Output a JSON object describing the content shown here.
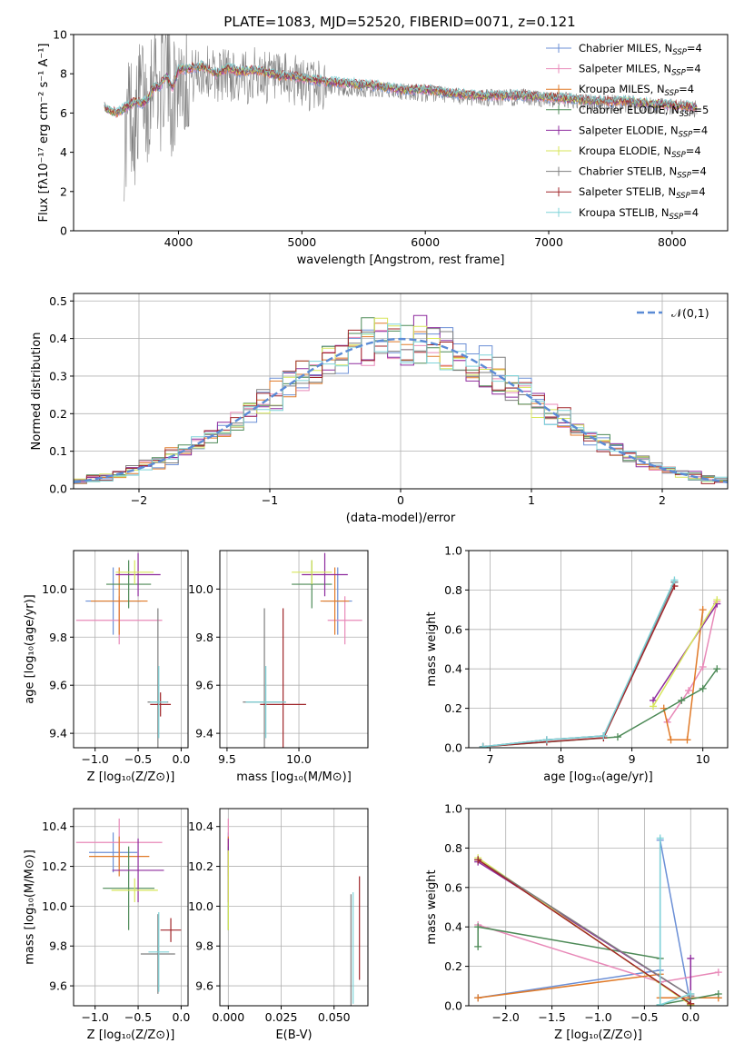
{
  "figure_title": "PLATE=1083, MJD=52520, FIBERID=0071, z=0.121",
  "model_colors": [
    "#6b8fd6",
    "#e889b8",
    "#e07a28",
    "#4d8a57",
    "#8e2b9e",
    "#d7e65a",
    "#7f7f7f",
    "#a0262a",
    "#7fd3d8"
  ],
  "chart_data": [
    {
      "id": "spectrum",
      "type": "line",
      "title": "PLATE=1083, MJD=52520, FIBERID=0071, z=0.121",
      "xlabel": "wavelength [Angstrom, rest frame]",
      "ylabel": "Flux [fλ10⁻¹⁷ erg cm⁻² s⁻¹ A⁻¹]",
      "xlim": [
        3150,
        8450
      ],
      "ylim": [
        0,
        10
      ],
      "xticks": [
        4000,
        5000,
        6000,
        7000,
        8000
      ],
      "yticks": [
        0,
        2,
        4,
        6,
        8,
        10
      ],
      "legend_position": "top-right",
      "legend": [
        "Chabrier MILES, N_SSP=4",
        "Salpeter MILES, N_SSP=4",
        "Kroupa MILES, N_SSP=4",
        "Chabrier ELODIE, N_SSP=5",
        "Salpeter ELODIE, N_SSP=4",
        "Kroupa ELODIE, N_SSP=4",
        "Chabrier STELIB, N_SSP=4",
        "Salpeter STELIB, N_SSP=4",
        "Kroupa STELIB, N_SSP=4"
      ],
      "data_series": {
        "name": "",
        "x": [
          3570,
          3600,
          3650,
          3700,
          3750,
          3800,
          3850,
          3900,
          3950,
          4000,
          4100,
          4200,
          4300,
          4400,
          4500,
          4600,
          4700,
          4800,
          4900,
          5000,
          5200,
          5400,
          5600,
          5800,
          6000,
          6200,
          6400,
          6600,
          6800,
          7000,
          7200,
          7400,
          7600,
          7800,
          8000,
          8200
        ],
        "y": [
          4.5,
          6.5,
          5.2,
          7.5,
          6.2,
          8.8,
          6.8,
          8.6,
          6.5,
          8.0,
          7.8,
          8.2,
          7.9,
          8.1,
          7.6,
          8.0,
          7.9,
          7.6,
          7.7,
          7.5,
          7.4,
          7.2,
          7.2,
          7.1,
          7.0,
          6.9,
          6.8,
          6.8,
          6.8,
          6.7,
          6.6,
          6.5,
          6.5,
          6.4,
          6.3,
          6.2
        ]
      },
      "model_x": [
        3400,
        3450,
        3500,
        3550,
        3600,
        3650,
        3700,
        3750,
        3800,
        3850,
        3900,
        3950,
        4000,
        4100,
        4200,
        4300,
        4400,
        4500,
        4600,
        4700,
        4800,
        4900,
        5000,
        5200,
        5400,
        5600,
        5800,
        6000,
        6200,
        6400,
        6600,
        6800,
        7000,
        7200,
        7400,
        7600,
        7800,
        8000,
        8200
      ],
      "model_y": [
        6.3,
        6.1,
        6.0,
        6.2,
        6.4,
        6.6,
        6.5,
        6.7,
        7.3,
        7.4,
        7.9,
        7.3,
        8.2,
        8.3,
        8.4,
        8.0,
        8.3,
        8.1,
        8.2,
        8.1,
        7.9,
        7.9,
        7.8,
        7.6,
        7.5,
        7.4,
        7.2,
        7.2,
        7.0,
        6.9,
        6.9,
        6.9,
        6.8,
        6.7,
        6.6,
        6.6,
        6.5,
        6.4,
        6.3
      ]
    },
    {
      "id": "residuals",
      "type": "line",
      "xlabel": "(data-model)/error",
      "ylabel": "Normed distribution",
      "xlim": [
        -2.5,
        2.5
      ],
      "ylim": [
        0,
        0.52
      ],
      "xticks": [
        -2,
        -1,
        0,
        1,
        2
      ],
      "yticks": [
        0.0,
        0.1,
        0.2,
        0.3,
        0.4,
        0.5
      ],
      "legend_position": "top-right",
      "legend": [
        "𝒩(0,1)"
      ],
      "reference_curve": {
        "mean": 0,
        "sigma": 1,
        "style": "dashed",
        "color": "#5b8bd5"
      },
      "bin_width": 0.1
    },
    {
      "id": "age-vs-metallicity",
      "type": "scatter",
      "xlabel": "Z [log₁₀(Z/Z⊙)]",
      "ylabel": "age  [log₁₀(age/yr)]",
      "xlim": [
        -1.25,
        0.08
      ],
      "ylim": [
        9.34,
        10.16
      ],
      "xticks": [
        -1.0,
        -0.5,
        0.0
      ],
      "yticks": [
        9.4,
        9.6,
        9.8,
        10.0
      ],
      "points": [
        {
          "x": -0.79,
          "y": 9.95,
          "xerr": 0.32,
          "yerr": 0.14
        },
        {
          "x": -0.72,
          "y": 9.87,
          "xerr": 0.5,
          "yerr": 0.1
        },
        {
          "x": -0.72,
          "y": 9.95,
          "xerr": 0.33,
          "yerr": 0.14
        },
        {
          "x": -0.61,
          "y": 10.02,
          "xerr": 0.26,
          "yerr": 0.1
        },
        {
          "x": -0.5,
          "y": 10.06,
          "xerr": 0.26,
          "yerr": 0.09
        },
        {
          "x": -0.54,
          "y": 10.07,
          "xerr": 0.22,
          "yerr": 0.05
        },
        {
          "x": -0.27,
          "y": 9.53,
          "xerr": 0.12,
          "yerr": 0.39
        },
        {
          "x": -0.24,
          "y": 9.52,
          "xerr": 0.12,
          "yerr": 0.05
        },
        {
          "x": -0.26,
          "y": 9.53,
          "xerr": 0.1,
          "yerr": 0.15
        }
      ]
    },
    {
      "id": "age-vs-mass",
      "type": "scatter",
      "xlabel": "mass [log₁₀(M/M⊙)]",
      "ylabel": "",
      "xlim": [
        9.45,
        10.48
      ],
      "ylim": [
        9.34,
        10.16
      ],
      "xticks": [
        9.5,
        10.0
      ],
      "yticks": [
        9.4,
        9.6,
        9.8,
        10.0
      ],
      "points": [
        {
          "x": 10.27,
          "y": 9.95,
          "xerr": 0.1,
          "yerr": 0.14
        },
        {
          "x": 10.32,
          "y": 9.87,
          "xerr": 0.12,
          "yerr": 0.1
        },
        {
          "x": 10.25,
          "y": 9.95,
          "xerr": 0.1,
          "yerr": 0.14
        },
        {
          "x": 10.09,
          "y": 10.02,
          "xerr": 0.14,
          "yerr": 0.1
        },
        {
          "x": 10.18,
          "y": 10.06,
          "xerr": 0.16,
          "yerr": 0.09
        },
        {
          "x": 10.09,
          "y": 10.07,
          "xerr": 0.14,
          "yerr": 0.05
        },
        {
          "x": 9.76,
          "y": 9.53,
          "xerr": 0.15,
          "yerr": 0.39
        },
        {
          "x": 9.89,
          "y": 9.52,
          "xerr": 0.16,
          "yerr": 0.4
        },
        {
          "x": 9.77,
          "y": 9.53,
          "xerr": 0.14,
          "yerr": 0.15
        }
      ]
    },
    {
      "id": "mass-weight-vs-age",
      "type": "line",
      "xlabel": "age  [log₁₀(age/yr)]",
      "ylabel": "mass weight",
      "xlim": [
        6.7,
        10.35
      ],
      "ylim": [
        0,
        1.0
      ],
      "xticks": [
        7,
        8,
        9,
        10
      ],
      "yticks": [
        0.0,
        0.2,
        0.4,
        0.6,
        0.8,
        1.0
      ],
      "series": [
        {
          "x": [
            6.9,
            7.8,
            8.6,
            9.6
          ],
          "y": [
            0.005,
            0.04,
            0.06,
            0.84
          ]
        },
        {
          "x": [
            9.5,
            9.8,
            10.0,
            10.2
          ],
          "y": [
            0.13,
            0.29,
            0.41,
            0.74
          ]
        },
        {
          "x": [
            9.45,
            9.55,
            9.78,
            10.0
          ],
          "y": [
            0.2,
            0.04,
            0.04,
            0.7
          ]
        },
        {
          "x": [
            6.9,
            8.8,
            9.7,
            10.0,
            10.2
          ],
          "y": [
            0.005,
            0.055,
            0.24,
            0.3,
            0.4
          ]
        },
        {
          "x": [
            9.3,
            10.2
          ],
          "y": [
            0.24,
            0.73
          ]
        },
        {
          "x": [
            9.3,
            10.2
          ],
          "y": [
            0.21,
            0.75
          ]
        },
        {
          "x": [
            6.9,
            7.8,
            8.6,
            9.6
          ],
          "y": [
            0.005,
            0.04,
            0.06,
            0.84
          ]
        },
        {
          "x": [
            6.9,
            7.8,
            8.6,
            9.6
          ],
          "y": [
            0.005,
            0.03,
            0.05,
            0.82
          ]
        },
        {
          "x": [
            6.9,
            7.8,
            8.6,
            9.6
          ],
          "y": [
            0.005,
            0.04,
            0.06,
            0.85
          ]
        }
      ]
    },
    {
      "id": "mass-vs-metallicity",
      "type": "scatter",
      "xlabel": "Z [log₁₀(Z/Z⊙)]",
      "ylabel": "mass [log₁₀(M/M⊙)]",
      "xlim": [
        -1.25,
        0.08
      ],
      "ylim": [
        9.5,
        10.49
      ],
      "xticks": [
        -1.0,
        -0.5,
        0.0
      ],
      "yticks": [
        9.6,
        9.8,
        10.0,
        10.2,
        10.4
      ],
      "points": [
        {
          "x": -0.79,
          "y": 10.27,
          "xerr": 0.28,
          "yerr": 0.1
        },
        {
          "x": -0.72,
          "y": 10.32,
          "xerr": 0.5,
          "yerr": 0.12
        },
        {
          "x": -0.72,
          "y": 10.25,
          "xerr": 0.35,
          "yerr": 0.1
        },
        {
          "x": -0.61,
          "y": 10.09,
          "xerr": 0.3,
          "yerr": 0.21
        },
        {
          "x": -0.5,
          "y": 10.18,
          "xerr": 0.3,
          "yerr": 0.16
        },
        {
          "x": -0.54,
          "y": 10.08,
          "xerr": 0.27,
          "yerr": 0.06
        },
        {
          "x": -0.27,
          "y": 9.76,
          "xerr": 0.2,
          "yerr": 0.2
        },
        {
          "x": -0.12,
          "y": 9.88,
          "xerr": 0.12,
          "yerr": 0.06
        },
        {
          "x": -0.26,
          "y": 9.77,
          "xerr": 0.12,
          "yerr": 0.2
        }
      ]
    },
    {
      "id": "mass-vs-extinction",
      "type": "scatter",
      "xlabel": "E(B-V)",
      "ylabel": "",
      "xlim": [
        -0.004,
        0.066
      ],
      "ylim": [
        9.5,
        10.49
      ],
      "xticks": [
        0.0,
        0.025,
        0.05
      ],
      "tick_labels": [
        "0.000",
        "0.025",
        "0.050"
      ],
      "yticks": [
        9.6,
        9.8,
        10.0,
        10.2,
        10.4
      ],
      "points": [
        {
          "x": 0.0,
          "y": 10.27,
          "yerr": 0.1
        },
        {
          "x": 0.0,
          "y": 10.32,
          "yerr": 0.12
        },
        {
          "x": 0.0,
          "y": 10.25,
          "yerr": 0.1
        },
        {
          "x": 0.0,
          "y": 10.09,
          "yerr": 0.21
        },
        {
          "x": 0.0,
          "y": 10.18,
          "yerr": 0.16
        },
        {
          "x": 0.0,
          "y": 10.08,
          "yerr": 0.2
        },
        {
          "x": 0.058,
          "y": 9.76,
          "yerr": 0.3
        },
        {
          "x": 0.062,
          "y": 9.89,
          "yerr": 0.26
        },
        {
          "x": 0.059,
          "y": 9.79,
          "yerr": 0.28
        }
      ]
    },
    {
      "id": "mass-weight-vs-metallicity",
      "type": "line",
      "xlabel": "Z [log₁₀(Z/Z⊙)]",
      "ylabel": "mass weight",
      "xlim": [
        -2.4,
        0.4
      ],
      "ylim": [
        0,
        1.0
      ],
      "xticks": [
        -2.0,
        -1.5,
        -1.0,
        -0.5,
        0.0
      ],
      "yticks": [
        0.0,
        0.2,
        0.4,
        0.6,
        0.8,
        1.0
      ],
      "series": [
        {
          "x": [
            -2.3,
            -0.33,
            -0.33,
            0.0
          ],
          "y": [
            0.04,
            0.18,
            0.84,
            0.005
          ]
        },
        {
          "x": [
            -2.3,
            -0.33,
            0.3
          ],
          "y": [
            0.41,
            0.12,
            0.17
          ]
        },
        {
          "x": [
            -2.3,
            -0.33,
            -0.33,
            0.3
          ],
          "y": [
            0.04,
            0.16,
            0.04,
            0.04
          ]
        },
        {
          "x": [
            -2.3,
            -2.3,
            -0.33,
            -0.33,
            0.3
          ],
          "y": [
            0.3,
            0.4,
            0.24,
            0.005,
            0.06
          ]
        },
        {
          "x": [
            -2.3,
            0.0,
            0.0
          ],
          "y": [
            0.73,
            0.05,
            0.24
          ]
        },
        {
          "x": [
            -2.3,
            0.0
          ],
          "y": [
            0.75,
            0.005
          ]
        },
        {
          "x": [
            -2.3,
            0.0,
            0.0
          ],
          "y": [
            0.74,
            0.05,
            0.06
          ]
        },
        {
          "x": [
            -2.3,
            0.0
          ],
          "y": [
            0.74,
            0.01
          ]
        },
        {
          "x": [
            -0.33,
            -0.33,
            0.0
          ],
          "y": [
            0.85,
            0.005,
            0.06
          ]
        }
      ]
    }
  ]
}
